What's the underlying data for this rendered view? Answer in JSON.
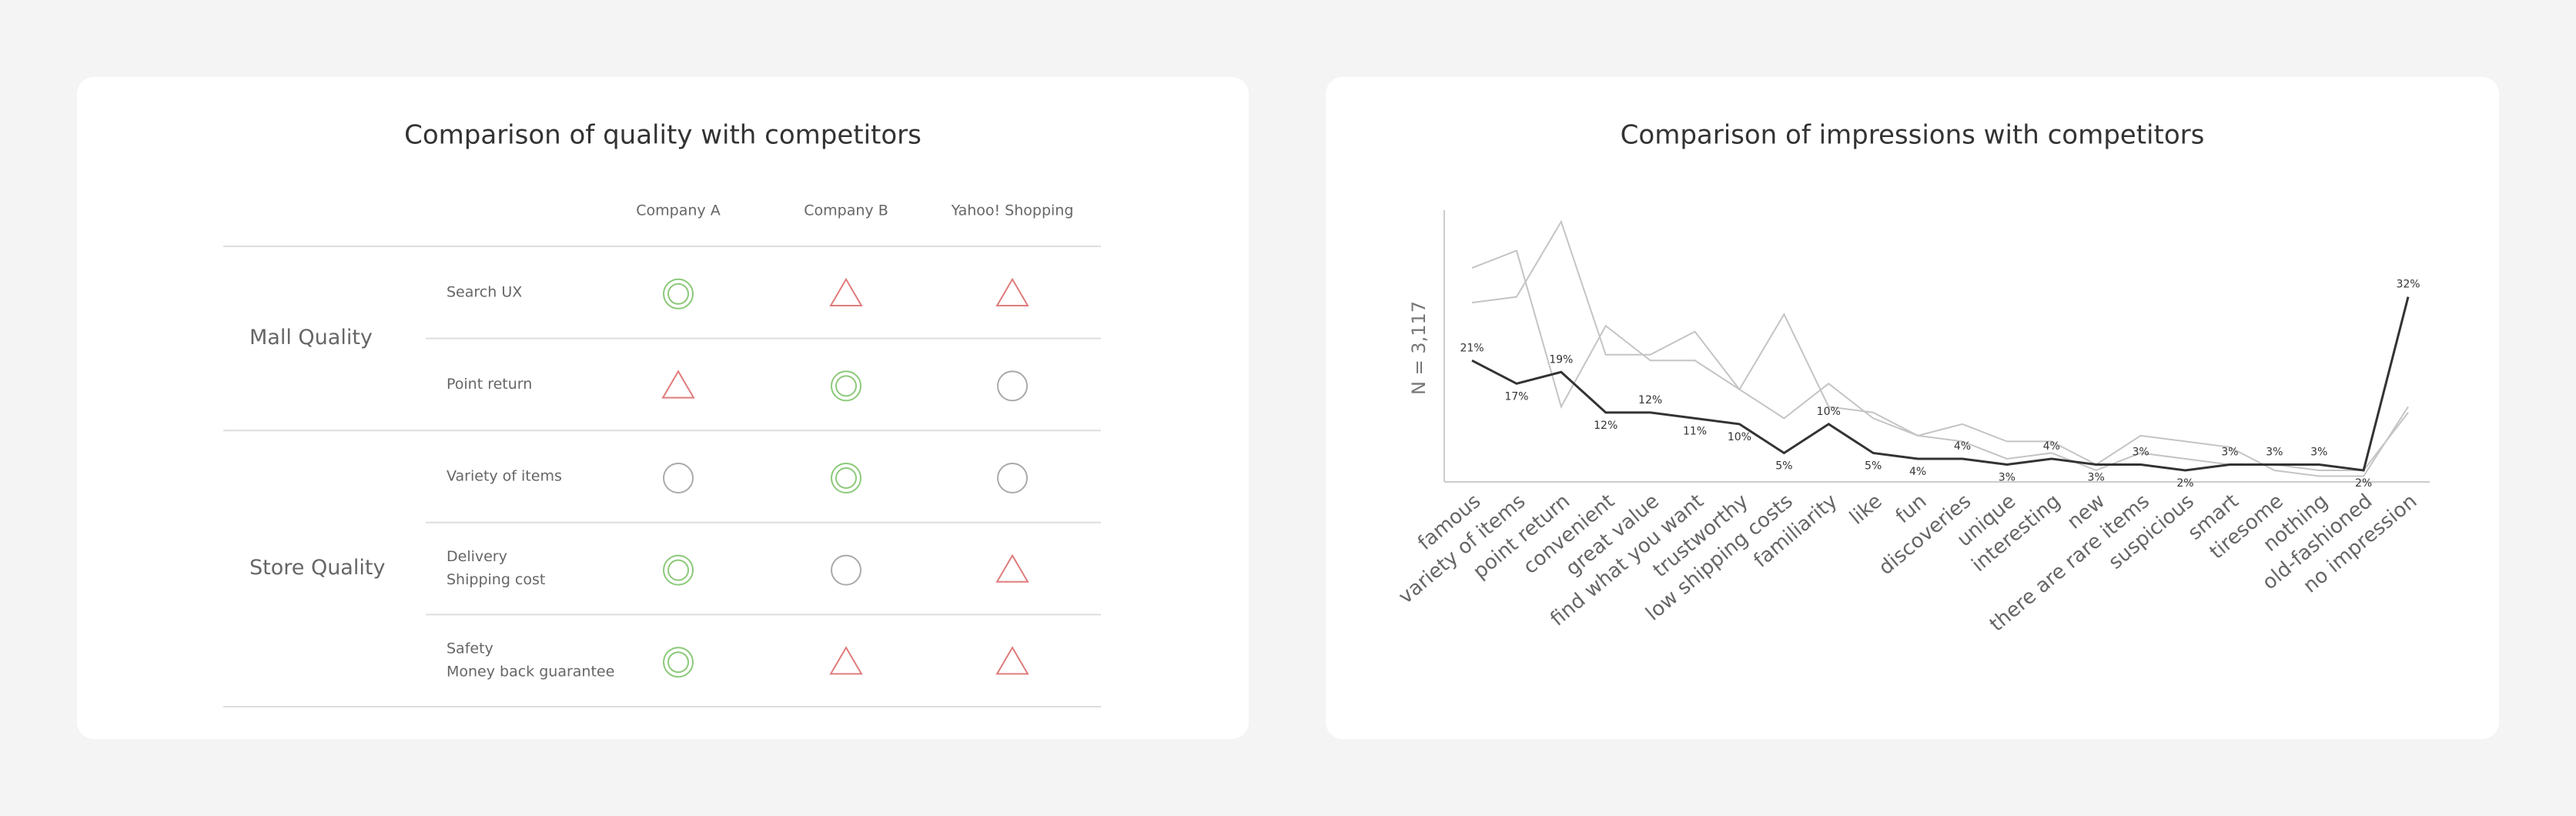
{
  "table": {
    "title": "Comparison of quality with competitors",
    "columns": [
      "Company A",
      "Company B",
      "Yahoo! Shopping"
    ],
    "groups": [
      {
        "label": "Mall Quality",
        "rows": [
          {
            "label": [
              "Search UX"
            ],
            "marks": [
              "◎",
              "△",
              "△"
            ]
          },
          {
            "label": [
              "Point return"
            ],
            "marks": [
              "△",
              "◎",
              "○"
            ]
          }
        ]
      },
      {
        "label": "Store Quality",
        "rows": [
          {
            "label": [
              "Variety of items"
            ],
            "marks": [
              "○",
              "◎",
              "○"
            ]
          },
          {
            "label": [
              "Delivery",
              "Shipping cost"
            ],
            "marks": [
              "◎",
              "○",
              "△"
            ]
          },
          {
            "label": [
              "Safety",
              "Money back guarantee"
            ],
            "marks": [
              "◎",
              "△",
              "△"
            ]
          }
        ]
      }
    ]
  },
  "chart_data": {
    "type": "line",
    "title": "Comparison of impressions with competitors",
    "y_label": "N = 3,117",
    "categories": [
      "famous",
      "variety of items",
      "point return",
      "convenient",
      "great value",
      "find what you want",
      "trustworthy",
      "low shipping costs",
      "familiarity",
      "like",
      "fun",
      "discoveries",
      "unique",
      "interesting",
      "new",
      "there are rare items",
      "suspicious",
      "smart",
      "tiresome",
      "nothing",
      "old-fashioned",
      "no impression"
    ],
    "ylim": [
      0,
      47
    ],
    "series": [
      {
        "color": "#c4c4c4",
        "values": [
          37,
          40,
          13,
          27,
          21,
          21,
          16,
          29,
          13,
          12,
          8,
          10,
          7,
          7,
          3,
          8,
          7,
          6,
          2,
          1,
          1,
          13
        ]
      },
      {
        "color": "#c4c4c4",
        "values": [
          31,
          32,
          45,
          22,
          22,
          26,
          16,
          11,
          17,
          11,
          8,
          7,
          4,
          5,
          2,
          5,
          4,
          3,
          3,
          2,
          2,
          12
        ]
      },
      {
        "color": "#333333",
        "values": [
          21,
          17,
          19,
          12,
          12,
          11,
          10,
          5,
          10,
          5,
          4,
          4,
          3,
          4,
          3,
          3,
          2,
          3,
          3,
          3,
          2,
          32
        ],
        "value_labels": [
          "21%",
          "17%",
          "19%",
          "12%",
          "12%",
          "11%",
          "10%",
          "5%",
          "10%",
          "5%",
          "4%",
          "4%",
          "3%",
          "4%",
          "3%",
          "3%",
          "2%",
          "3%",
          "3%",
          "3%",
          "2%",
          "32%"
        ]
      }
    ]
  }
}
